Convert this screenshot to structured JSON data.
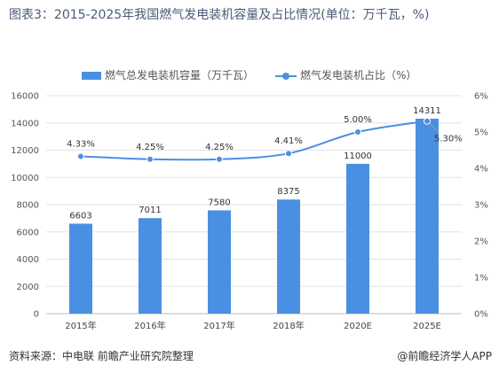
{
  "title": "图表3：2015-2025年我国燃气发电装机容量及占比情况(单位：万千瓦，%)",
  "source": "资料来源：中电联 前瞻产业研究院整理",
  "brand": "@前瞻经济学人APP",
  "colors": {
    "bar": "#4a90e2",
    "line": "#4a90e2",
    "grid": "#e3e3e3",
    "title": "#4a5a78"
  },
  "chart_data": {
    "type": "bar",
    "categories": [
      "2015年",
      "2016年",
      "2017年",
      "2018年",
      "2020E",
      "2025E"
    ],
    "series": [
      {
        "name": "燃气总发电装机容量（万千瓦）",
        "type": "bar",
        "axis": "left",
        "values": [
          6603,
          7011,
          7580,
          8375,
          11000,
          14311
        ],
        "labels": [
          "6603",
          "7011",
          "7580",
          "8375",
          "11000",
          "14311"
        ]
      },
      {
        "name": "燃气发电装机占比（%）",
        "type": "line",
        "axis": "right",
        "values": [
          4.33,
          4.25,
          4.25,
          4.41,
          5.0,
          5.3
        ],
        "labels": [
          "4.33%",
          "4.25%",
          "4.25%",
          "4.41%",
          "5.00%",
          "5.30%"
        ]
      }
    ],
    "y_left": {
      "min": 0,
      "max": 16000,
      "step": 2000,
      "ticks": [
        "0",
        "2000",
        "4000",
        "6000",
        "8000",
        "10000",
        "12000",
        "14000",
        "16000"
      ]
    },
    "y_right": {
      "min": 0,
      "max": 6,
      "step": 1,
      "ticks": [
        "0%",
        "1%",
        "2%",
        "3%",
        "4%",
        "5%",
        "6%"
      ]
    },
    "grid": true,
    "legend_position": "top"
  }
}
